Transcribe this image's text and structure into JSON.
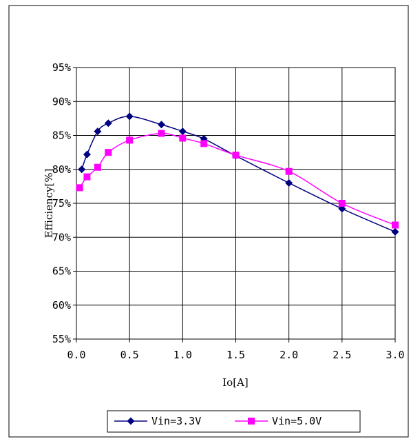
{
  "chart_data": {
    "type": "line",
    "title": "",
    "xlabel": "Io[A]",
    "ylabel": "Efficiency[%]",
    "xlim": [
      0.0,
      3.0
    ],
    "ylim": [
      55,
      95
    ],
    "x_ticks": [
      "0.0",
      "0.5",
      "1.0",
      "1.5",
      "2.0",
      "2.5",
      "3.0"
    ],
    "y_ticks": [
      "55%",
      "60%",
      "65%",
      "70%",
      "75%",
      "80%",
      "85%",
      "90%",
      "95%"
    ],
    "grid": true,
    "legend_position": "bottom",
    "series": [
      {
        "name": "Vin=3.3V",
        "color": "#000080",
        "marker": "diamond",
        "x": [
          0.05,
          0.1,
          0.2,
          0.3,
          0.5,
          0.8,
          1.0,
          1.2,
          1.5,
          2.0,
          2.5,
          3.0
        ],
        "y": [
          80.0,
          82.2,
          85.6,
          86.8,
          87.8,
          86.6,
          85.6,
          84.5,
          82.0,
          78.0,
          74.2,
          70.8
        ]
      },
      {
        "name": "Vin=5.0V",
        "color": "#FF00FF",
        "marker": "square",
        "x": [
          0.03,
          0.1,
          0.2,
          0.3,
          0.5,
          0.8,
          1.0,
          1.2,
          1.5,
          2.0,
          2.5,
          3.0
        ],
        "y": [
          77.3,
          78.9,
          80.3,
          82.5,
          84.3,
          85.3,
          84.6,
          83.8,
          82.1,
          79.7,
          75.0,
          71.8
        ]
      }
    ]
  }
}
